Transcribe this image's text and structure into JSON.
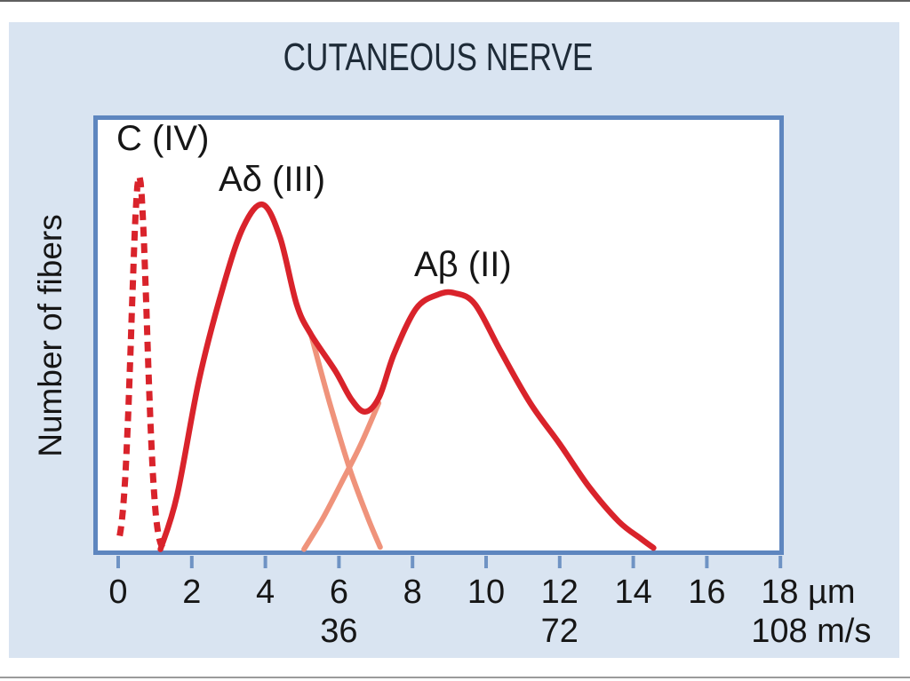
{
  "colors": {
    "curve_red": "#d9232b",
    "component_salmon": "#ef937b",
    "axis_blue": "#5e86bf",
    "tick_blue": "#6f93c4",
    "panel_blue": "#d9e4f1",
    "title_text": "#1e2b38",
    "label_text": "#161616"
  },
  "chart_data": {
    "type": "line",
    "title": "CUTANEOUS NERVE",
    "ylabel": "Number of fibers",
    "grid": false,
    "legend": false,
    "x_axis": {
      "unit_row1": "µm",
      "unit_row2": "m/s",
      "ticks_um": [
        0,
        2,
        4,
        6,
        8,
        10,
        12,
        14,
        16,
        18
      ],
      "tick_labels": [
        "0",
        "2",
        "4",
        "6",
        "8",
        "10",
        "12",
        "14",
        "16",
        "18 µm"
      ],
      "velocity_labels": [
        {
          "um": 6,
          "label": "36"
        },
        {
          "um": 12,
          "label": "72"
        },
        {
          "um": 18,
          "label": "108 m/s"
        }
      ]
    },
    "y_axis": {
      "label": "Number of fibers",
      "numeric_scale": false,
      "range_frac": [
        0,
        1
      ]
    },
    "annotations": [
      {
        "text": "C (IV)",
        "peak_um": 0.57
      },
      {
        "text": "Aδ (III)",
        "peak_um": 3.93
      },
      {
        "text": "Aβ (II)",
        "peak_um": 9.15
      }
    ],
    "series": [
      {
        "name": "Aδ (III) component descending tail",
        "color_key": "component_salmon",
        "style": "solid",
        "shape": "points",
        "points_um_h": [
          [
            5.24,
            0.505
          ],
          [
            5.75,
            0.345
          ],
          [
            6.3,
            0.19
          ],
          [
            6.8,
            0.075
          ],
          [
            7.12,
            0.01
          ]
        ]
      },
      {
        "name": "Aβ (II) component leading edge",
        "color_key": "component_salmon",
        "style": "solid",
        "shape": "points",
        "points_um_h": [
          [
            5.05,
            0.005
          ],
          [
            5.55,
            0.075
          ],
          [
            6.1,
            0.165
          ],
          [
            6.6,
            0.25
          ],
          [
            7.08,
            0.345
          ]
        ]
      },
      {
        "name": "A-fiber envelope (Aδ III + Aβ II)",
        "color_key": "curve_red",
        "style": "solid",
        "shape": "points",
        "points_um_h": [
          [
            1.15,
            0.005
          ],
          [
            1.6,
            0.13
          ],
          [
            2.2,
            0.4
          ],
          [
            2.85,
            0.615
          ],
          [
            3.4,
            0.755
          ],
          [
            3.93,
            0.807
          ],
          [
            4.4,
            0.73
          ],
          [
            4.85,
            0.575
          ],
          [
            5.24,
            0.505
          ],
          [
            5.9,
            0.42
          ],
          [
            6.35,
            0.352
          ],
          [
            6.72,
            0.325
          ],
          [
            7.1,
            0.36
          ],
          [
            7.5,
            0.46
          ],
          [
            8.1,
            0.565
          ],
          [
            8.7,
            0.598
          ],
          [
            9.15,
            0.601
          ],
          [
            9.7,
            0.575
          ],
          [
            10.4,
            0.465
          ],
          [
            11.2,
            0.345
          ],
          [
            12.0,
            0.25
          ],
          [
            12.8,
            0.15
          ],
          [
            13.6,
            0.07
          ],
          [
            14.2,
            0.03
          ],
          [
            14.55,
            0.008
          ]
        ]
      },
      {
        "name": "C (IV) fibers",
        "color_key": "curve_red",
        "style": "dashed",
        "shape": "gaussian",
        "peak_um": 0.57,
        "sigma_um": 0.21,
        "peak_height_frac": 0.873,
        "range_um": [
          0.04,
          1.3
        ]
      }
    ]
  }
}
